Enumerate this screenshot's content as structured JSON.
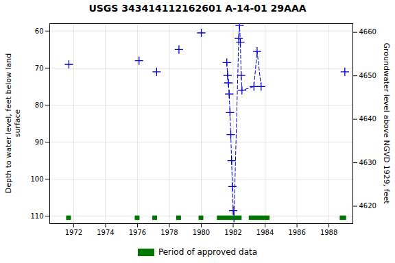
{
  "chart_data": {
    "type": "line",
    "title": "USGS 343414112162601 A-14-01 29AAA",
    "ylabel": "Depth to water level, feet below land\nsurface",
    "y2label": "Groundwater level above NGVD 1929, feet",
    "xlim": [
      1970.5,
      1989.5
    ],
    "xticks": [
      1972,
      1974,
      1976,
      1978,
      1980,
      1982,
      1984,
      1986,
      1988
    ],
    "ylim": [
      112,
      58
    ],
    "yticks": [
      60,
      70,
      80,
      90,
      100,
      110
    ],
    "y2lim": [
      4616.0,
      4662.0
    ],
    "y2ticks": [
      4620,
      4630,
      4640,
      4650,
      4660
    ],
    "grid": true,
    "legend": "bottom",
    "series": [
      {
        "type": "scatter",
        "marker": "plus",
        "color": "#0000cc",
        "x": [
          1971.7,
          1976.1,
          1977.2,
          1978.6,
          1980.0,
          1989.0
        ],
        "values": [
          69.0,
          68.0,
          71.0,
          65.0,
          60.5,
          71.0
        ]
      },
      {
        "type": "line",
        "line_style": "dashed",
        "marker": "plus",
        "color": "#0000cc",
        "x": [
          1981.6,
          1981.65,
          1981.7,
          1981.75,
          1981.8,
          1981.85,
          1981.9,
          1981.95,
          1982.0,
          1982.05,
          1982.35,
          1982.4,
          1982.45,
          1982.5,
          1982.55,
          1983.3,
          1983.5,
          1983.75
        ],
        "values": [
          68.5,
          72.0,
          74.0,
          77.0,
          82.0,
          88.0,
          95.0,
          102.0,
          108.5,
          110.5,
          62.0,
          58.5,
          63.0,
          72.0,
          76.0,
          75.0,
          65.5,
          75.0
        ]
      },
      {
        "type": "bar",
        "name": "Period of approved data",
        "color": "#007700",
        "x_start": [
          1971.55,
          1975.85,
          1976.95,
          1978.45,
          1979.85,
          1981.0,
          1983.0,
          1988.7
        ],
        "x_end": [
          1971.85,
          1976.15,
          1977.25,
          1978.75,
          1980.15,
          1982.55,
          1984.3,
          1989.1
        ],
        "y": 110.5,
        "height": 1.2
      }
    ]
  }
}
